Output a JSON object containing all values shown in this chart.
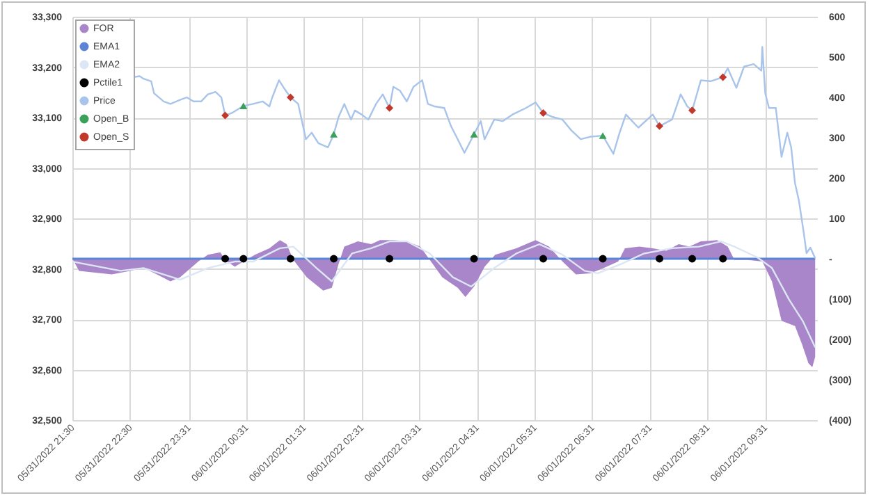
{
  "chart_data": {
    "type": "line",
    "xlim": [
      "2022-05-31T21:30",
      "2022-06-01T10:25"
    ],
    "xticks": [
      {
        "value": "2022-05-31T21:30",
        "label": "05/31/2022 21:30"
      },
      {
        "value": "2022-05-31T22:30",
        "label": "05/31/2022 22:30"
      },
      {
        "value": "2022-05-31T23:31",
        "label": "05/31/2022 23:31"
      },
      {
        "value": "2022-06-01T00:31",
        "label": "06/01/2022 00:31"
      },
      {
        "value": "2022-06-01T01:31",
        "label": "06/01/2022 01:31"
      },
      {
        "value": "2022-06-01T02:31",
        "label": "06/01/2022 02:31"
      },
      {
        "value": "2022-06-01T03:31",
        "label": "06/01/2022 03:31"
      },
      {
        "value": "2022-06-01T04:31",
        "label": "06/01/2022 04:31"
      },
      {
        "value": "2022-06-01T05:31",
        "label": "06/01/2022 05:31"
      },
      {
        "value": "2022-06-01T06:31",
        "label": "06/01/2022 06:31"
      },
      {
        "value": "2022-06-01T07:31",
        "label": "06/01/2022 07:31"
      },
      {
        "value": "2022-06-01T08:31",
        "label": "06/01/2022 08:31"
      },
      {
        "value": "2022-06-01T09:31",
        "label": "06/01/2022 09:31"
      }
    ],
    "ylim": [
      32500,
      33300
    ],
    "yticks": [
      {
        "value": 32500,
        "label": "32,500"
      },
      {
        "value": 32600,
        "label": "32,600"
      },
      {
        "value": 32700,
        "label": "32,700"
      },
      {
        "value": 32800,
        "label": "32,800"
      },
      {
        "value": 32900,
        "label": "32,900"
      },
      {
        "value": 33000,
        "label": "33,000"
      },
      {
        "value": 33100,
        "label": "33,100"
      },
      {
        "value": 33200,
        "label": "33,200"
      },
      {
        "value": 33300,
        "label": "33,300"
      }
    ],
    "y2lim": [
      -400,
      600
    ],
    "y2ticks": [
      {
        "value": -400,
        "label": "(400)"
      },
      {
        "value": -300,
        "label": "(300)"
      },
      {
        "value": -200,
        "label": "(200)"
      },
      {
        "value": -100,
        "label": "(100)"
      },
      {
        "value": 0,
        "label": "-"
      },
      100,
      200,
      300,
      400,
      500,
      600
    ],
    "grid": true,
    "legend": "top left",
    "series": [
      {
        "name": "FOR",
        "type": "area",
        "axis": "y2",
        "color": "#a985c9",
        "x": [
          "2022-05-31T21:30",
          "2022-05-31T21:37",
          "2022-05-31T22:11",
          "2022-05-31T22:30",
          "2022-05-31T22:44",
          "2022-05-31T22:58",
          "2022-05-31T23:12",
          "2022-05-31T23:22",
          "2022-05-31T23:41",
          "2022-05-31T23:51",
          "2022-06-01T00:04",
          "2022-06-01T00:09",
          "2022-06-01T00:19",
          "2022-06-01T00:28",
          "2022-06-01T00:40",
          "2022-06-01T00:55",
          "2022-06-01T01:06",
          "2022-06-01T01:13",
          "2022-06-01T01:20",
          "2022-06-01T01:34",
          "2022-06-01T01:51",
          "2022-06-01T02:00",
          "2022-06-01T02:07",
          "2022-06-01T02:13",
          "2022-06-01T02:27",
          "2022-06-01T02:41",
          "2022-06-01T02:50",
          "2022-06-01T03:04",
          "2022-06-01T03:18",
          "2022-06-01T03:32",
          "2022-06-01T03:42",
          "2022-06-01T03:55",
          "2022-06-01T04:11",
          "2022-06-01T04:19",
          "2022-06-01T04:28",
          "2022-06-01T04:39",
          "2022-06-01T04:50",
          "2022-06-01T05:12",
          "2022-06-01T05:32",
          "2022-06-01T05:46",
          "2022-06-01T06:00",
          "2022-06-01T06:14",
          "2022-06-01T06:29",
          "2022-06-01T06:43",
          "2022-06-01T06:58",
          "2022-06-01T07:05",
          "2022-06-01T07:20",
          "2022-06-01T07:34",
          "2022-06-01T07:48",
          "2022-06-01T08:01",
          "2022-06-01T08:12",
          "2022-06-01T08:24",
          "2022-06-01T08:41",
          "2022-06-01T08:52",
          "2022-06-01T08:59",
          "2022-06-01T09:13",
          "2022-06-01T09:28",
          "2022-06-01T09:38",
          "2022-06-01T09:48",
          "2022-06-01T10:02",
          "2022-06-01T10:09",
          "2022-06-01T10:16",
          "2022-06-01T10:20",
          "2022-06-01T10:23"
        ],
        "values": [
          0,
          -30,
          -39,
          -30,
          -23,
          -39,
          -56,
          -46,
          -7,
          10,
          16,
          -3,
          -20,
          -7,
          10,
          26,
          46,
          36,
          -3,
          -46,
          -79,
          -72,
          -13,
          30,
          43,
          36,
          46,
          46,
          43,
          30,
          -3,
          -46,
          -72,
          -95,
          -69,
          -20,
          10,
          26,
          46,
          30,
          -7,
          -39,
          -36,
          -23,
          -7,
          26,
          30,
          26,
          20,
          36,
          30,
          43,
          46,
          30,
          -3,
          -3,
          -7,
          -56,
          -154,
          -167,
          -210,
          -259,
          -269,
          -243
        ]
      },
      {
        "name": "EMA1",
        "type": "line",
        "axis": "y2",
        "color": "#5b84d6",
        "x": [
          "2022-05-31T21:30",
          "2022-06-01T10:23"
        ],
        "values": [
          0,
          0
        ]
      },
      {
        "name": "EMA2",
        "type": "line",
        "axis": "y2",
        "color": "#dce6f4",
        "x": [
          "2022-05-31T21:30",
          "2022-05-31T22:20",
          "2022-05-31T22:44",
          "2022-05-31T23:22",
          "2022-05-31T23:51",
          "2022-06-01T00:19",
          "2022-06-01T00:38",
          "2022-06-01T01:06",
          "2022-06-01T01:20",
          "2022-06-01T01:44",
          "2022-06-01T02:00",
          "2022-06-01T02:21",
          "2022-06-01T02:41",
          "2022-06-01T03:00",
          "2022-06-01T03:18",
          "2022-06-01T03:42",
          "2022-06-01T04:06",
          "2022-06-01T04:25",
          "2022-06-01T04:49",
          "2022-06-01T05:12",
          "2022-06-01T05:36",
          "2022-06-01T06:00",
          "2022-06-01T06:23",
          "2022-06-01T06:37",
          "2022-06-01T07:01",
          "2022-06-01T07:25",
          "2022-06-01T07:54",
          "2022-06-01T08:22",
          "2022-06-01T08:45",
          "2022-06-01T08:59",
          "2022-06-01T09:23",
          "2022-06-01T09:38",
          "2022-06-01T09:56",
          "2022-06-01T10:10",
          "2022-06-01T10:23"
        ],
        "values": [
          -7,
          -30,
          -23,
          -52,
          -23,
          -7,
          -7,
          26,
          30,
          -23,
          -56,
          13,
          26,
          43,
          43,
          13,
          -46,
          -69,
          -23,
          13,
          36,
          10,
          -30,
          -36,
          -13,
          13,
          26,
          30,
          43,
          30,
          3,
          -23,
          -102,
          -154,
          -220
        ]
      },
      {
        "name": "Pctile1",
        "type": "scatter",
        "axis": "y2",
        "marker": "circle",
        "color": "#000000",
        "x": [
          "2022-06-01T00:09",
          "2022-06-01T00:28",
          "2022-06-01T01:17",
          "2022-06-01T02:02",
          "2022-06-01T03:00",
          "2022-06-01T04:28",
          "2022-06-01T05:40",
          "2022-06-01T06:42",
          "2022-06-01T07:41",
          "2022-06-01T08:15",
          "2022-06-01T08:47"
        ],
        "values": [
          0,
          0,
          0,
          0,
          0,
          0,
          0,
          0,
          0,
          0,
          0
        ]
      },
      {
        "name": "Price",
        "type": "line",
        "color": "#a9c4eb",
        "x": [
          "2022-05-31T22:33",
          "2022-05-31T22:40",
          "2022-05-31T22:44",
          "2022-05-31T22:52",
          "2022-05-31T22:55",
          "2022-05-31T23:05",
          "2022-05-31T23:12",
          "2022-05-31T23:22",
          "2022-05-31T23:29",
          "2022-05-31T23:36",
          "2022-05-31T23:44",
          "2022-05-31T23:51",
          "2022-05-31T23:59",
          "2022-06-01T00:05",
          "2022-06-01T00:09",
          "2022-06-01T00:16",
          "2022-06-01T00:28",
          "2022-06-01T00:38",
          "2022-06-01T00:48",
          "2022-06-01T00:55",
          "2022-06-01T00:58",
          "2022-06-01T01:05",
          "2022-06-01T01:10",
          "2022-06-01T01:17",
          "2022-06-01T01:25",
          "2022-06-01T01:33",
          "2022-06-01T01:39",
          "2022-06-01T01:46",
          "2022-06-01T01:56",
          "2022-06-01T02:02",
          "2022-06-01T02:07",
          "2022-06-01T02:13",
          "2022-06-01T02:20",
          "2022-06-01T02:24",
          "2022-06-01T02:31",
          "2022-06-01T02:38",
          "2022-06-01T02:46",
          "2022-06-01T02:53",
          "2022-06-01T03:00",
          "2022-06-01T03:04",
          "2022-06-01T03:11",
          "2022-06-01T03:18",
          "2022-06-01T03:25",
          "2022-06-01T03:34",
          "2022-06-01T03:40",
          "2022-06-01T03:47",
          "2022-06-01T03:57",
          "2022-06-01T04:04",
          "2022-06-01T04:11",
          "2022-06-01T04:18",
          "2022-06-01T04:28",
          "2022-06-01T04:35",
          "2022-06-01T04:39",
          "2022-06-01T04:49",
          "2022-06-01T04:58",
          "2022-06-01T05:08",
          "2022-06-01T05:22",
          "2022-06-01T05:32",
          "2022-06-01T05:40",
          "2022-06-01T05:50",
          "2022-06-01T06:00",
          "2022-06-01T06:09",
          "2022-06-01T06:19",
          "2022-06-01T06:29",
          "2022-06-01T06:42",
          "2022-06-01T06:53",
          "2022-06-01T06:59",
          "2022-06-01T07:06",
          "2022-06-01T07:19",
          "2022-06-01T07:34",
          "2022-06-01T07:41",
          "2022-06-01T07:54",
          "2022-06-01T08:03",
          "2022-06-01T08:10",
          "2022-06-01T08:15",
          "2022-06-01T08:24",
          "2022-06-01T08:34",
          "2022-06-01T08:47",
          "2022-06-01T08:52",
          "2022-06-01T09:01",
          "2022-06-01T09:09",
          "2022-06-01T09:19",
          "2022-06-01T09:27",
          "2022-06-01T09:28",
          "2022-06-01T09:31",
          "2022-06-01T09:35",
          "2022-06-01T09:42",
          "2022-06-01T09:48",
          "2022-06-01T09:54",
          "2022-06-01T09:58",
          "2022-06-01T10:02",
          "2022-06-01T10:06",
          "2022-06-01T10:11",
          "2022-06-01T10:14",
          "2022-06-01T10:18",
          "2022-06-01T10:23"
        ],
        "values": [
          33180,
          33182,
          33177,
          33172,
          33148,
          33132,
          33127,
          33135,
          33140,
          33132,
          33132,
          33146,
          33151,
          33140,
          33104,
          33109,
          33123,
          33127,
          33132,
          33122,
          33140,
          33174,
          33159,
          33140,
          33127,
          33057,
          33070,
          33049,
          33041,
          33067,
          33101,
          33127,
          33096,
          33114,
          33106,
          33096,
          33127,
          33146,
          33119,
          33161,
          33153,
          33132,
          33161,
          33174,
          33127,
          33122,
          33119,
          33083,
          33057,
          33030,
          33067,
          33093,
          33057,
          33096,
          33093,
          33106,
          33119,
          33130,
          33109,
          33101,
          33096,
          33075,
          33057,
          33062,
          33064,
          33028,
          33067,
          33106,
          33080,
          33106,
          33083,
          33096,
          33146,
          33122,
          33114,
          33174,
          33172,
          33180,
          33198,
          33159,
          33201,
          33206,
          33193,
          33240,
          33148,
          33119,
          33119,
          33022,
          33070,
          33041,
          32970,
          32936,
          32873,
          32831,
          32842,
          32821
        ]
      },
      {
        "name": "Open_B",
        "type": "scatter",
        "marker": "triangle",
        "color": "#3aa05a",
        "x": [
          "2022-06-01T00:28",
          "2022-06-01T02:02",
          "2022-06-01T04:28",
          "2022-06-01T06:42"
        ],
        "values": [
          33123,
          33067,
          33067,
          33064
        ]
      },
      {
        "name": "Open_S",
        "type": "scatter",
        "marker": "diamond",
        "color": "#c0392b",
        "x": [
          "2022-06-01T00:09",
          "2022-06-01T01:17",
          "2022-06-01T03:00",
          "2022-06-01T05:40",
          "2022-06-01T07:41",
          "2022-06-01T08:15",
          "2022-06-01T08:47"
        ],
        "values": [
          33104,
          33140,
          33119,
          33109,
          33083,
          33114,
          33180
        ]
      }
    ]
  }
}
